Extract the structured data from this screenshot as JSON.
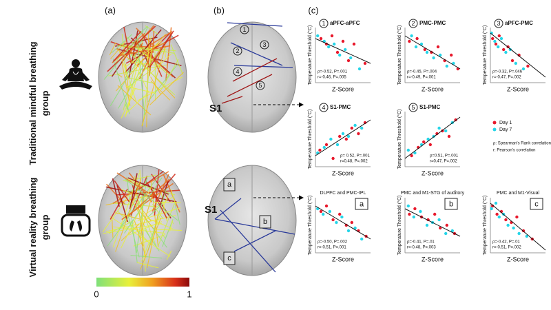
{
  "figure": {
    "panel_labels": [
      "(a)",
      "(b)",
      "(c)"
    ],
    "groups": [
      "Traditional mindful breathing group",
      "Virtual reality breathing group"
    ],
    "colorbar": {
      "clim": [
        0,
        1
      ],
      "ticks": [
        0,
        1
      ]
    },
    "brain_labels": {
      "regions": [
        "1",
        "2",
        "3",
        "4",
        "5"
      ],
      "s1": "S1",
      "letters": [
        "a",
        "b",
        "c"
      ]
    },
    "scatter": {
      "type": "scatter",
      "xlim": [
        -2,
        3
      ],
      "ylim": [
        30,
        50
      ],
      "x_label": "Z-Score",
      "y_label": "Temperature Threshold (°C)",
      "legend": [
        {
          "name": "Day 1",
          "color": "#e8192c"
        },
        {
          "name": "Day 7",
          "color": "#25d5e8"
        }
      ],
      "notes": [
        "ρ: Spearman's Rank correlation",
        "r: Pearson's correlation"
      ],
      "panels": [
        {
          "marker": "1",
          "marker_style": "circle",
          "title": "aPFC-aPFC",
          "stats": [
            "ρ=-0.52, P=.001",
            "r=-0.46, P=.005"
          ],
          "day1": {
            "x": [
              -1.5,
              -1,
              -0.5,
              0,
              0.5,
              1,
              1.5,
              2.5
            ],
            "y": [
              46,
              44,
              47,
              41,
              45,
              38,
              44,
              37
            ]
          },
          "day7": {
            "x": [
              -1.8,
              -1.2,
              -0.8,
              -0.3,
              0.2,
              0.7,
              1.2,
              2
            ],
            "y": [
              47,
              45,
              43,
              44,
              40,
              42,
              39,
              35
            ]
          },
          "fit": {
            "x": [
              -2,
              3
            ],
            "y": [
              46,
              37
            ]
          }
        },
        {
          "marker": "2",
          "marker_style": "circle",
          "title": "PMC-PMC",
          "stats": [
            "ρ=-0.45, P=.004",
            "r=-0.49, P=.001"
          ],
          "day1": {
            "x": [
              -1.6,
              -0.9,
              -0.2,
              0.4,
              1,
              1.6,
              2.2,
              2.8
            ],
            "y": [
              45,
              46,
              42,
              41,
              43,
              38,
              40,
              35
            ]
          },
          "day7": {
            "x": [
              -1.4,
              -1,
              -0.5,
              0,
              0.6,
              1.2,
              1.8,
              2.4
            ],
            "y": [
              47,
              43,
              44,
              41,
              39,
              40,
              36,
              37
            ]
          },
          "fit": {
            "x": [
              -2,
              3
            ],
            "y": [
              47,
              35
            ]
          }
        },
        {
          "marker": "3",
          "marker_style": "circle",
          "title": "aPFC-PMC",
          "stats": [
            "ρ=-0.32, P=.046",
            "r=-0.47, P=.002"
          ],
          "day1": {
            "x": [
              -1.8,
              -1.5,
              -1.2,
              -0.8,
              -0.4,
              0,
              0.6,
              1.4
            ],
            "y": [
              46,
              44,
              47,
              42,
              43,
              38,
              40,
              36
            ]
          },
          "day7": {
            "x": [
              -1.9,
              -1.6,
              -1.3,
              -1,
              -0.6,
              -0.2,
              0.3,
              1
            ],
            "y": [
              48,
              45,
              43,
              46,
              41,
              42,
              37,
              35
            ]
          },
          "fit": {
            "x": [
              -2,
              3
            ],
            "y": [
              48,
              32
            ]
          }
        },
        {
          "marker": "4",
          "marker_style": "circle",
          "title": "S1-PMC",
          "stats": [
            "ρ= 0.52, P=.001",
            "r=0.48, P=.002"
          ],
          "day1": {
            "x": [
              -1.6,
              -1,
              -0.4,
              0.2,
              0.8,
              1.3,
              1.9,
              2.5
            ],
            "y": [
              36,
              38,
              33,
              41,
              40,
              44,
              42,
              46
            ]
          },
          "day7": {
            "x": [
              -1.8,
              -1.2,
              -0.6,
              0,
              0.5,
              1,
              1.6,
              2.2
            ],
            "y": [
              35,
              37,
              40,
              38,
              42,
              41,
              45,
              44
            ]
          },
          "fit": {
            "x": [
              -2,
              3
            ],
            "y": [
              34,
              47
            ]
          }
        },
        {
          "marker": "5",
          "marker_style": "circle",
          "title": "S1-PMC",
          "stats": [
            "ρ=0.51, P=.001",
            "r=0.47, P=.002"
          ],
          "day1": {
            "x": [
              -1.4,
              -0.8,
              -0.3,
              0.3,
              0.9,
              1.4,
              2,
              2.6
            ],
            "y": [
              34,
              37,
              39,
              38,
              42,
              43,
              41,
              47
            ]
          },
          "day7": {
            "x": [
              -1.7,
              -1.1,
              -0.5,
              0.1,
              0.6,
              1.1,
              1.7,
              2.3
            ],
            "y": [
              36,
              35,
              38,
              40,
              41,
              44,
              43,
              46
            ]
          },
          "fit": {
            "x": [
              -2,
              3
            ],
            "y": [
              33,
              48
            ]
          }
        },
        {
          "marker": "a",
          "marker_style": "box",
          "title": "DLPFC and PMC-IPL",
          "stats": [
            "ρ=-0.50, P=.002",
            "r=-0.51, P=.001"
          ],
          "day1": {
            "x": [
              -1.5,
              -1,
              -0.4,
              0.2,
              0.8,
              1.3,
              1.9,
              2.6
            ],
            "y": [
              45,
              47,
              42,
              44,
              40,
              41,
              38,
              36
            ]
          },
          "day7": {
            "x": [
              -1.8,
              -1.3,
              -0.7,
              -0.1,
              0.4,
              1,
              1.6,
              2.2
            ],
            "y": [
              46,
              44,
              45,
              41,
              43,
              38,
              39,
              35
            ]
          },
          "fit": {
            "x": [
              -2,
              3
            ],
            "y": [
              47,
              35
            ]
          }
        },
        {
          "marker": "b",
          "marker_style": "box",
          "title": "PMC and M1-STG of auditory",
          "stats": [
            "ρ=-0.41, P=.01",
            "r=-0.48, P=.003"
          ],
          "day1": {
            "x": [
              -1.6,
              -1.1,
              -0.5,
              0.1,
              0.7,
              1.2,
              1.8,
              2.5
            ],
            "y": [
              44,
              46,
              43,
              42,
              44,
              39,
              40,
              37
            ]
          },
          "day7": {
            "x": [
              -1.7,
              -1.2,
              -0.6,
              0,
              0.5,
              1.1,
              1.7,
              2.3
            ],
            "y": [
              47,
              43,
              45,
              40,
              41,
              42,
              37,
              38
            ]
          },
          "fit": {
            "x": [
              -2,
              3
            ],
            "y": [
              46,
              36
            ]
          }
        },
        {
          "marker": "c",
          "marker_style": "box",
          "title": "PMC and M1-Visual",
          "stats": [
            "ρ=-0.42, P=.01",
            "r=-0.51, P=.002"
          ],
          "day1": {
            "x": [
              -1.8,
              -1.4,
              -1,
              -0.6,
              -0.1,
              0.4,
              1,
              1.8
            ],
            "y": [
              47,
              44,
              45,
              42,
              41,
              43,
              38,
              35
            ]
          },
          "day7": {
            "x": [
              -1.9,
              -1.5,
              -1.2,
              -0.8,
              -0.4,
              0.1,
              0.6,
              1.3
            ],
            "y": [
              46,
              48,
              43,
              44,
              40,
              39,
              37,
              36
            ]
          },
          "fit": {
            "x": [
              -2,
              3
            ],
            "y": [
              48,
              31
            ]
          }
        }
      ]
    }
  }
}
